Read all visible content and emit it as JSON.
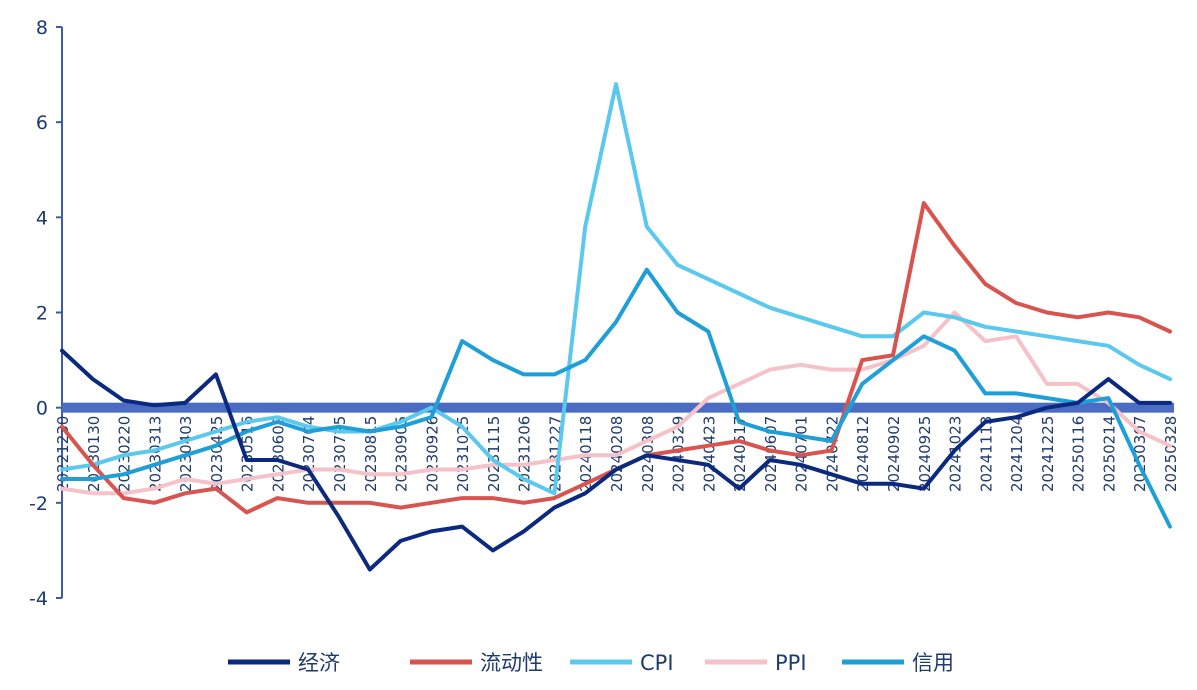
{
  "chart_data": {
    "type": "line",
    "ylim": [
      -4,
      8
    ],
    "yticks": [
      -4,
      -2,
      0,
      2,
      4,
      6,
      8
    ],
    "x_ticks": [
      "20221230",
      "20230130",
      "20230220",
      "20230313",
      "20230403",
      "20230425",
      "20230516",
      "20230609",
      "20230704",
      "20230725",
      "20230815",
      "20230905",
      "20230926",
      "20231025",
      "20231115",
      "20231206",
      "20231227",
      "20240118",
      "20240208",
      "20240308",
      "20240329",
      "20240423",
      "20240517",
      "20240607",
      "20240701",
      "20240722",
      "20240812",
      "20240902",
      "20240925",
      "20241023",
      "20241113",
      "20241204",
      "20241225",
      "20250116",
      "20250214",
      "20250307",
      "20250328"
    ],
    "legend_position": "bottom",
    "series": [
      {
        "name": "经济",
        "color": "#0b2a7f",
        "values": [
          1.2,
          0.6,
          0.15,
          0.05,
          0.1,
          0.7,
          -1.1,
          -1.1,
          -1.3,
          -2.3,
          -3.4,
          -2.8,
          -2.6,
          -2.5,
          -3.0,
          -2.6,
          -2.1,
          -1.8,
          -1.3,
          -1.0,
          -1.1,
          -1.2,
          -1.7,
          -1.1,
          -1.2,
          -1.4,
          -1.6,
          -1.6,
          -1.7,
          -0.9,
          -0.3,
          -0.2,
          0.0,
          0.1,
          0.6,
          0.1,
          0.1
        ]
      },
      {
        "name": "流动性",
        "color": "#d9534f",
        "values": [
          -0.4,
          -1.2,
          -1.9,
          -2.0,
          -1.8,
          -1.7,
          -2.2,
          -1.9,
          -2.0,
          -2.0,
          -2.0,
          -2.1,
          -2.0,
          -1.9,
          -1.9,
          -2.0,
          -1.9,
          -1.6,
          -1.3,
          -1.0,
          -0.9,
          -0.8,
          -0.7,
          -0.9,
          -1.0,
          -0.9,
          1.0,
          1.1,
          4.3,
          3.4,
          2.6,
          2.2,
          2.0,
          1.9,
          2.0,
          1.9,
          1.6
        ]
      },
      {
        "name": "CPI",
        "color": "#5bc8ee",
        "values": [
          -1.3,
          -1.2,
          -1.0,
          -0.9,
          -0.7,
          -0.5,
          -0.3,
          -0.2,
          -0.4,
          -0.5,
          -0.5,
          -0.3,
          0.0,
          -0.4,
          -1.1,
          -1.5,
          -1.8,
          3.8,
          6.8,
          3.8,
          3.0,
          2.7,
          2.4,
          2.1,
          1.9,
          1.7,
          1.5,
          1.5,
          2.0,
          1.9,
          1.7,
          1.6,
          1.5,
          1.4,
          1.3,
          0.9,
          0.6
        ]
      },
      {
        "name": "PPI",
        "color": "#f4c2c8",
        "values": [
          -1.7,
          -1.8,
          -1.8,
          -1.7,
          -1.5,
          -1.6,
          -1.5,
          -1.4,
          -1.3,
          -1.3,
          -1.4,
          -1.4,
          -1.3,
          -1.3,
          -1.2,
          -1.2,
          -1.1,
          -1.0,
          -1.0,
          -0.7,
          -0.4,
          0.2,
          0.5,
          0.8,
          0.9,
          0.8,
          0.8,
          1.0,
          1.3,
          2.0,
          1.4,
          1.5,
          0.5,
          0.5,
          0.1,
          -0.5,
          -0.8
        ]
      },
      {
        "name": "信用",
        "color": "#1f9fd8",
        "values": [
          -1.5,
          -1.5,
          -1.4,
          -1.2,
          -1.0,
          -0.8,
          -0.5,
          -0.3,
          -0.5,
          -0.4,
          -0.5,
          -0.4,
          -0.2,
          1.4,
          1.0,
          0.7,
          0.7,
          1.0,
          1.8,
          2.9,
          2.0,
          1.6,
          -0.3,
          -0.5,
          -0.6,
          -0.7,
          0.5,
          1.0,
          1.5,
          1.2,
          0.3,
          0.3,
          0.2,
          0.1,
          0.2,
          -1.2,
          -2.5
        ]
      }
    ]
  }
}
